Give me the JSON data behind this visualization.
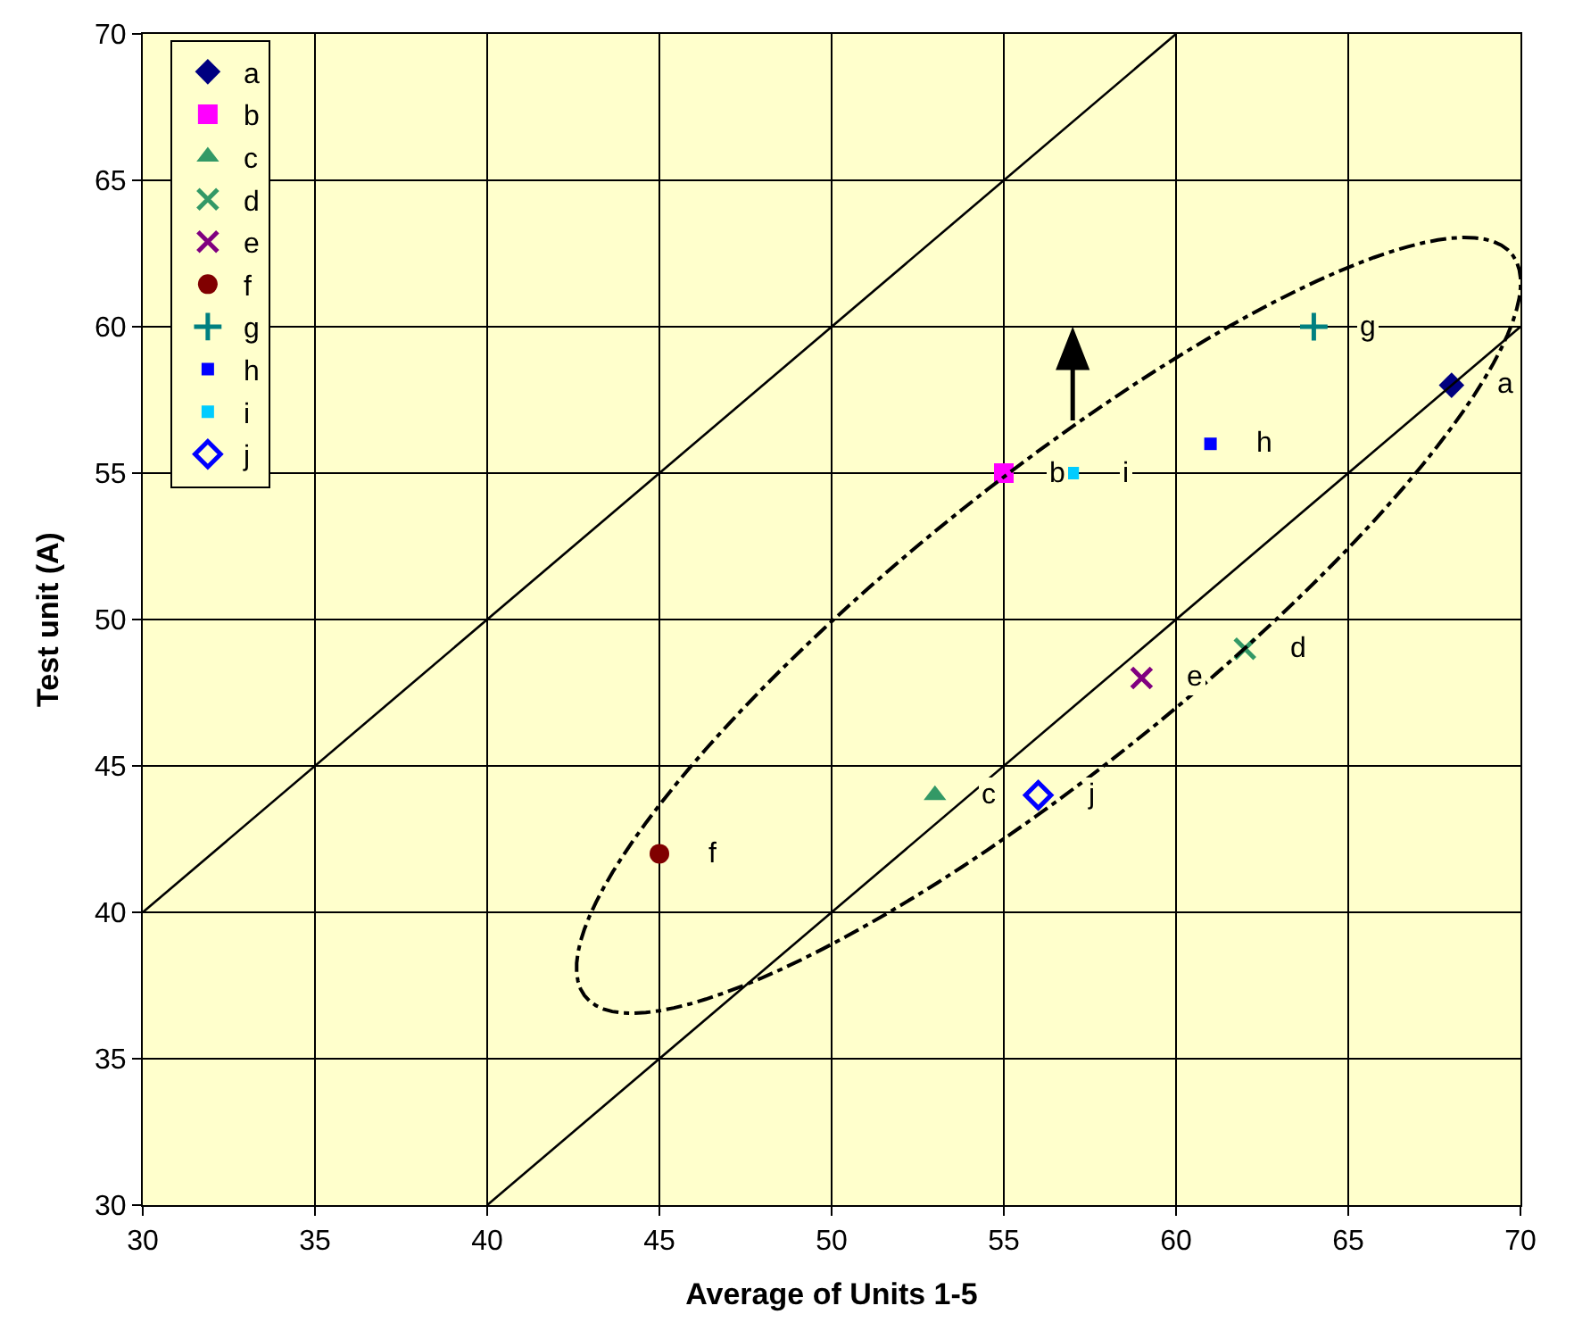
{
  "chart_data": {
    "type": "scatter",
    "xlabel": "Average of Units 1-5",
    "ylabel": "Test unit (A)",
    "xlim": [
      30,
      70
    ],
    "xticks": [
      30,
      35,
      40,
      45,
      50,
      55,
      60,
      65,
      70
    ],
    "ylim": [
      30,
      70
    ],
    "yticks": [
      30,
      35,
      40,
      45,
      50,
      55,
      60,
      65,
      70
    ],
    "grid": true,
    "legend": "top left",
    "series": [
      {
        "name": "a",
        "color": "#000080",
        "marker": "diamond",
        "x": [
          68
        ],
        "values": [
          58
        ]
      },
      {
        "name": "b",
        "color": "#ff00ff",
        "marker": "square",
        "x": [
          55
        ],
        "values": [
          55
        ]
      },
      {
        "name": "c",
        "color": "#339966",
        "marker": "triangle",
        "x": [
          53
        ],
        "values": [
          44
        ]
      },
      {
        "name": "d",
        "color": "#339966",
        "marker": "cross",
        "x": [
          62
        ],
        "values": [
          49
        ]
      },
      {
        "name": "e",
        "color": "#800080",
        "marker": "cross",
        "x": [
          59
        ],
        "values": [
          48
        ]
      },
      {
        "name": "f",
        "color": "#800000",
        "marker": "circle",
        "x": [
          45
        ],
        "values": [
          42
        ]
      },
      {
        "name": "g",
        "color": "#008080",
        "marker": "plus",
        "x": [
          64
        ],
        "values": [
          60
        ]
      },
      {
        "name": "h",
        "color": "#0000ff",
        "marker": "square",
        "x": [
          61
        ],
        "values": [
          56
        ]
      },
      {
        "name": "i",
        "color": "#00ccff",
        "marker": "square",
        "x": [
          57
        ],
        "values": [
          55
        ]
      },
      {
        "name": "j",
        "color": "#0000ff",
        "marker": "diamond-open",
        "x": [
          56
        ],
        "values": [
          44
        ]
      },
      {
        "type": "line",
        "color": "#000000",
        "marker": "none",
        "x": [
          30,
          60
        ],
        "values": [
          40,
          70
        ]
      },
      {
        "type": "line",
        "color": "#000000",
        "marker": "none",
        "x": [
          40,
          70
        ],
        "values": [
          30,
          60
        ]
      }
    ]
  }
}
